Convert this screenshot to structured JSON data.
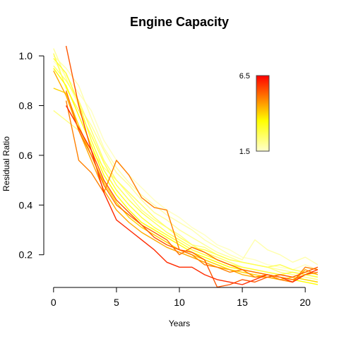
{
  "chart_data": {
    "type": "line",
    "title": "Engine Capacity",
    "xlabel": "Years",
    "ylabel": "Residual Ratio",
    "xlim": [
      -1,
      21
    ],
    "ylim": [
      0.06,
      1.06
    ],
    "x_ticks": [
      0,
      5,
      10,
      15,
      20
    ],
    "y_ticks": [
      0.2,
      0.4,
      0.6,
      0.8,
      1.0
    ],
    "x_tick_labels": [
      "0",
      "5",
      "10",
      "15",
      "20"
    ],
    "y_tick_labels": [
      "0.2",
      "0.4",
      "0.6",
      "0.8",
      "1.0"
    ],
    "grid": false,
    "color_scale": {
      "label_min": "1.5",
      "label_max": "6.5",
      "min": 1.5,
      "max": 6.5,
      "color_low": "#ffffcc",
      "color_mid": "#ffff00",
      "color_high": "#ff0000",
      "position": "top-right"
    },
    "series": [
      {
        "capacity": 1.6,
        "x": [
          0,
          1,
          2,
          3,
          4,
          5,
          6,
          7,
          8,
          9,
          10,
          11,
          12,
          13,
          14,
          15,
          16,
          17,
          18,
          19,
          20,
          21
        ],
        "y": [
          0.98,
          0.92,
          0.85,
          0.78,
          0.66,
          0.58,
          0.52,
          0.47,
          0.42,
          0.38,
          0.35,
          0.31,
          0.28,
          0.24,
          0.22,
          0.19,
          0.18,
          0.16,
          0.15,
          0.14,
          0.16,
          0.14
        ]
      },
      {
        "capacity": 1.8,
        "x": [
          0,
          1,
          2,
          3,
          4,
          5,
          6,
          7,
          8,
          9,
          10,
          11,
          12,
          13,
          14,
          15,
          16,
          17,
          18,
          19,
          20,
          21
        ],
        "y": [
          1.0,
          0.95,
          0.88,
          0.75,
          0.63,
          0.55,
          0.49,
          0.44,
          0.4,
          0.36,
          0.33,
          0.3,
          0.26,
          0.23,
          0.2,
          0.18,
          0.26,
          0.22,
          0.2,
          0.17,
          0.19,
          0.16
        ]
      },
      {
        "capacity": 2.0,
        "x": [
          0,
          1,
          2,
          3,
          4,
          5,
          6,
          7,
          8,
          9,
          10,
          11,
          12,
          13,
          14,
          15,
          16,
          17,
          18,
          19,
          20,
          21
        ],
        "y": [
          1.03,
          0.91,
          0.8,
          0.72,
          0.62,
          0.53,
          0.48,
          0.42,
          0.37,
          0.34,
          0.3,
          0.27,
          0.24,
          0.21,
          0.19,
          0.17,
          0.16,
          0.15,
          0.14,
          0.13,
          0.12,
          0.11
        ]
      },
      {
        "capacity": 2.2,
        "x": [
          0,
          1,
          2,
          3,
          4,
          5,
          6,
          7,
          8,
          9,
          10,
          11,
          12,
          13,
          14,
          15,
          16,
          17,
          18,
          19,
          20,
          21
        ],
        "y": [
          0.78,
          0.74,
          0.7,
          0.62,
          0.55,
          0.5,
          0.44,
          0.38,
          0.34,
          0.31,
          0.28,
          0.24,
          0.23,
          0.2,
          0.18,
          0.17,
          0.16,
          0.15,
          0.13,
          0.12,
          0.11,
          0.1
        ]
      },
      {
        "capacity": 2.5,
        "x": [
          0,
          1,
          2,
          3,
          4,
          5,
          6,
          7,
          8,
          9,
          10,
          11,
          12,
          13,
          14,
          15,
          16,
          17,
          18,
          19,
          20,
          21
        ],
        "y": [
          0.96,
          0.9,
          0.82,
          0.7,
          0.58,
          0.5,
          0.45,
          0.4,
          0.35,
          0.31,
          0.27,
          0.24,
          0.21,
          0.19,
          0.17,
          0.15,
          0.14,
          0.13,
          0.12,
          0.11,
          0.1,
          0.09
        ]
      },
      {
        "capacity": 2.7,
        "x": [
          0,
          1,
          2,
          3,
          4,
          5,
          6,
          7,
          8,
          9,
          10,
          11,
          12,
          13,
          14,
          15,
          16,
          17,
          18,
          19,
          20,
          21
        ],
        "y": [
          1.01,
          0.87,
          0.78,
          0.68,
          0.57,
          0.48,
          0.42,
          0.37,
          0.33,
          0.29,
          0.26,
          0.23,
          0.22,
          0.2,
          0.18,
          0.17,
          0.16,
          0.15,
          0.16,
          0.14,
          0.13,
          0.12
        ]
      },
      {
        "capacity": 3.0,
        "x": [
          0,
          1,
          2,
          3,
          4,
          5,
          6,
          7,
          8,
          9,
          10,
          11,
          12,
          13,
          14,
          15,
          16,
          17,
          18,
          19,
          20,
          21
        ],
        "y": [
          0.99,
          0.93,
          0.81,
          0.66,
          0.54,
          0.46,
          0.4,
          0.35,
          0.31,
          0.28,
          0.25,
          0.22,
          0.2,
          0.18,
          0.16,
          0.15,
          0.14,
          0.13,
          0.12,
          0.13,
          0.12,
          0.11
        ]
      },
      {
        "capacity": 3.5,
        "x": [
          0,
          1,
          2,
          3,
          4,
          5,
          6,
          7,
          8,
          9,
          10,
          11,
          12,
          13,
          14,
          15,
          16,
          17,
          18,
          19,
          20,
          21
        ],
        "y": [
          0.95,
          0.88,
          0.76,
          0.64,
          0.52,
          0.44,
          0.38,
          0.33,
          0.3,
          0.27,
          0.24,
          0.21,
          0.19,
          0.17,
          0.15,
          0.14,
          0.13,
          0.12,
          0.11,
          0.1,
          0.09,
          0.08
        ]
      },
      {
        "capacity": 4.0,
        "x": [
          0,
          1,
          2,
          3,
          4,
          5,
          6,
          7,
          8,
          9,
          10,
          11,
          12,
          13,
          14,
          15,
          16,
          17,
          18,
          19,
          20,
          21
        ],
        "y": [
          0.87,
          0.85,
          0.72,
          0.6,
          0.49,
          0.41,
          0.35,
          0.31,
          0.28,
          0.25,
          0.22,
          0.2,
          0.18,
          0.16,
          0.14,
          0.13,
          0.12,
          0.11,
          0.1,
          0.11,
          0.1,
          0.09
        ]
      },
      {
        "capacity": 4.5,
        "x": [
          0,
          1,
          2,
          3,
          4,
          5,
          6,
          7,
          8,
          9,
          10,
          11,
          12,
          13,
          14,
          15,
          16,
          17,
          18,
          19,
          20,
          21
        ],
        "y": [
          0.94,
          0.84,
          0.7,
          0.58,
          0.46,
          0.38,
          0.33,
          0.29,
          0.26,
          0.23,
          0.21,
          0.19,
          0.17,
          0.15,
          0.14,
          0.12,
          0.11,
          0.11,
          0.1,
          0.09,
          0.14,
          0.12
        ]
      },
      {
        "capacity": 5.0,
        "x": [
          1,
          2,
          3,
          4,
          5,
          6,
          7,
          8,
          9,
          10,
          11,
          12,
          13,
          14,
          15,
          16,
          17,
          18,
          19,
          20,
          21
        ],
        "y": [
          0.82,
          0.58,
          0.53,
          0.45,
          0.58,
          0.52,
          0.43,
          0.39,
          0.38,
          0.22,
          0.2,
          0.16,
          0.15,
          0.13,
          0.14,
          0.11,
          0.12,
          0.1,
          0.09,
          0.15,
          0.14
        ]
      },
      {
        "capacity": 5.5,
        "x": [
          1,
          2,
          3,
          4,
          5,
          6,
          7,
          8,
          9,
          10,
          11,
          12,
          13,
          14,
          15,
          16,
          17,
          18,
          19,
          20,
          21
        ],
        "y": [
          1.04,
          0.8,
          0.62,
          0.5,
          0.42,
          0.37,
          0.32,
          0.27,
          0.24,
          0.22,
          0.21,
          0.18,
          0.07,
          0.08,
          0.1,
          0.09,
          0.11,
          0.12,
          0.11,
          0.13,
          0.15
        ]
      },
      {
        "capacity": 6.0,
        "x": [
          1,
          2,
          3,
          4,
          5,
          6,
          7,
          8,
          9,
          10,
          11,
          12,
          13,
          14,
          15,
          16,
          17,
          18,
          19,
          20,
          21
        ],
        "y": [
          0.8,
          0.71,
          0.62,
          0.45,
          0.34,
          0.3,
          0.26,
          0.22,
          0.17,
          0.15,
          0.15,
          0.12,
          0.1,
          0.09,
          0.08,
          0.1,
          0.12,
          0.11,
          0.09,
          0.12,
          0.14
        ]
      },
      {
        "capacity": 5.2,
        "x": [
          1,
          2,
          3,
          4,
          5,
          6,
          7,
          8,
          9,
          10,
          11,
          12,
          13,
          14,
          15,
          16,
          17,
          18,
          19,
          20,
          21
        ],
        "y": [
          0.86,
          0.7,
          0.6,
          0.48,
          0.4,
          0.36,
          0.32,
          0.29,
          0.26,
          0.2,
          0.23,
          0.21,
          0.18,
          0.16,
          0.14,
          0.13,
          0.12,
          0.11,
          0.1,
          0.12,
          0.13
        ]
      }
    ]
  }
}
